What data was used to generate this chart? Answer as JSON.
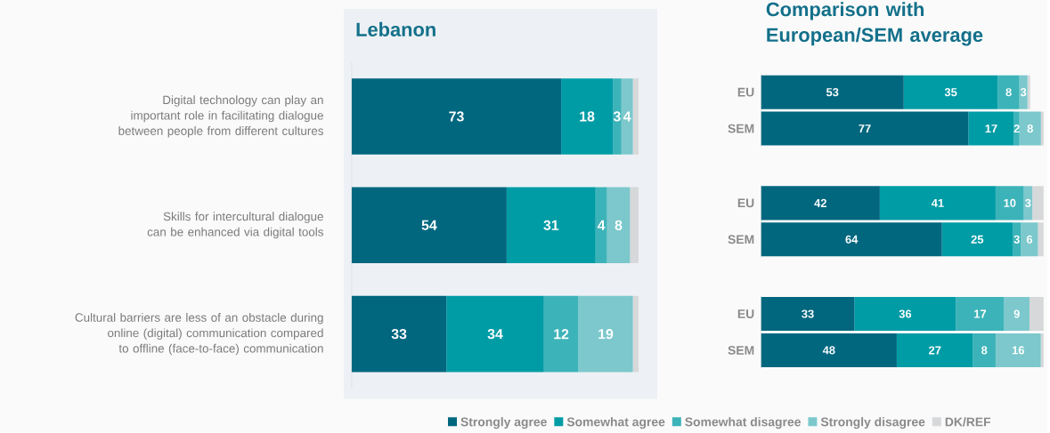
{
  "chart_data": [
    {
      "type": "bar",
      "orientation": "horizontal",
      "stacked": true,
      "title": "Lebanon",
      "legend": "bottom right",
      "tick_labels": "y",
      "categories": [
        "Digital technology can play an important role in facilitating dialogue between people from different cultures",
        "Skills for intercultural dialogue can be enhanced via digital tools",
        "Cultural barriers are less of an obstacle during online (digital) communication compared to offline (face-to-face) communication"
      ],
      "series": [
        {
          "name": "Strongly agree",
          "color": "#00677f",
          "values": [
            73,
            54,
            33
          ],
          "value_labels": [
            "73",
            "54",
            "33"
          ]
        },
        {
          "name": "Somewhat agree",
          "color": "#009ca6",
          "values": [
            18,
            31,
            34
          ],
          "value_labels": [
            "18",
            "31",
            "34"
          ]
        },
        {
          "name": "Somewhat disagree",
          "color": "#3cb3b9",
          "values": [
            3,
            4,
            12
          ],
          "value_labels": [
            "3",
            "4",
            "12"
          ]
        },
        {
          "name": "Strongly disagree",
          "color": "#7cc8cc",
          "values": [
            4,
            8,
            19
          ],
          "value_labels": [
            "4",
            "8",
            "19"
          ]
        },
        {
          "name": "DK/REF",
          "color": "#d6d8da",
          "values": [
            2,
            3,
            2
          ]
        }
      ]
    },
    {
      "type": "bar",
      "orientation": "horizontal",
      "stacked": true,
      "title": "Comparison with European/SEM average",
      "tick_labels": "y",
      "categories": [
        "EU",
        "SEM"
      ],
      "series": [
        {
          "color": "#00677f",
          "values": [
            53,
            77
          ],
          "value_labels": [
            "53",
            "77"
          ]
        },
        {
          "color": "#009ca6",
          "values": [
            35,
            17
          ],
          "value_labels": [
            "35",
            "17"
          ]
        },
        {
          "color": "#3cb3b9",
          "values": [
            8,
            2
          ],
          "value_labels": [
            "8",
            "2"
          ]
        },
        {
          "color": "#7cc8cc",
          "values": [
            3,
            8
          ],
          "value_labels": [
            "3",
            "8"
          ]
        },
        {
          "color": "#d6d8da",
          "values": [
            1,
            1
          ]
        }
      ]
    },
    {
      "type": "bar",
      "orientation": "horizontal",
      "stacked": true,
      "tick_labels": "y",
      "categories": [
        "EU",
        "SEM"
      ],
      "series": [
        {
          "color": "#00677f",
          "values": [
            42,
            64
          ],
          "value_labels": [
            "42",
            "64"
          ]
        },
        {
          "color": "#009ca6",
          "values": [
            41,
            25
          ],
          "value_labels": [
            "41",
            "25"
          ]
        },
        {
          "color": "#3cb3b9",
          "values": [
            10,
            3
          ],
          "value_labels": [
            "10",
            "3"
          ]
        },
        {
          "color": "#7cc8cc",
          "values": [
            3,
            6
          ],
          "value_labels": [
            "3",
            "6"
          ]
        },
        {
          "color": "#d6d8da",
          "values": [
            4,
            2
          ]
        }
      ]
    },
    {
      "type": "bar",
      "orientation": "horizontal",
      "stacked": true,
      "tick_labels": "y",
      "categories": [
        "EU",
        "SEM"
      ],
      "series": [
        {
          "color": "#00677f",
          "values": [
            33,
            48
          ],
          "value_labels": [
            "33",
            "48"
          ]
        },
        {
          "color": "#009ca6",
          "values": [
            36,
            27
          ],
          "value_labels": [
            "36",
            "27"
          ]
        },
        {
          "color": "#3cb3b9",
          "values": [
            17,
            8
          ],
          "value_labels": [
            "17",
            "8"
          ]
        },
        {
          "color": "#7cc8cc",
          "values": [
            9,
            16
          ],
          "value_labels": [
            "9",
            "16"
          ]
        },
        {
          "color": "#d6d8da",
          "values": [
            5,
            1
          ]
        }
      ]
    }
  ]
}
